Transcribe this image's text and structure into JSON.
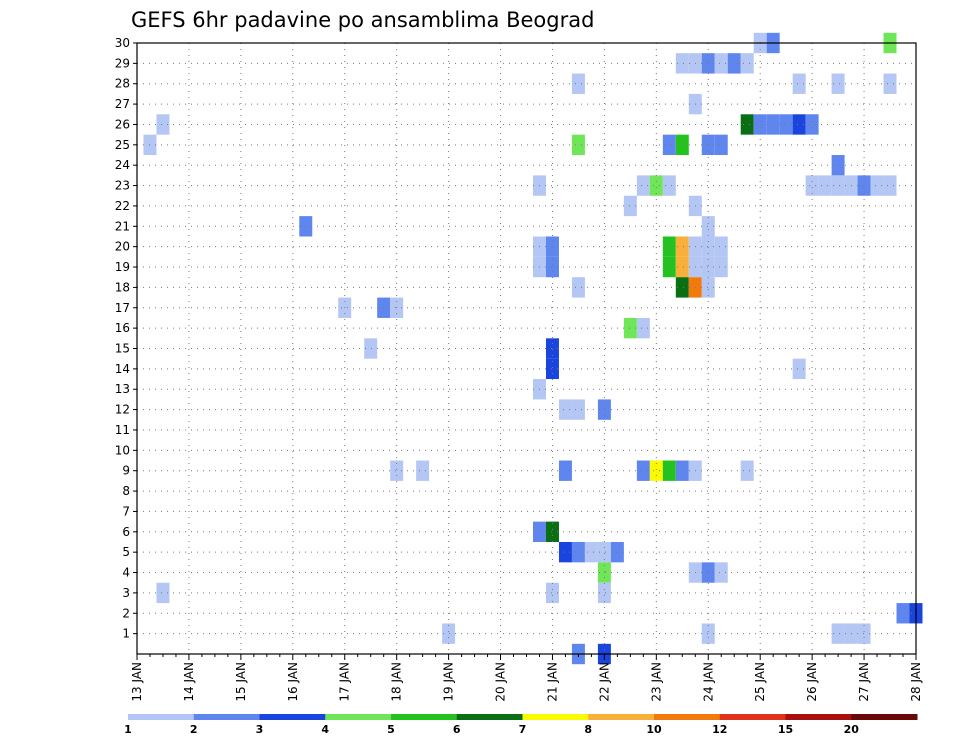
{
  "chart_data": {
    "type": "heatmap",
    "title": "GEFS 6hr padavine po ansamblima Beograd",
    "x_tick_labels": [
      "13 JAN",
      "14 JAN",
      "15 JAN",
      "16 JAN",
      "17 JAN",
      "18 JAN",
      "19 JAN",
      "20 JAN",
      "21 JAN",
      "22 JAN",
      "23 JAN",
      "24 JAN",
      "25 JAN",
      "26 JAN",
      "27 JAN",
      "28 JAN"
    ],
    "y_tick_labels": [
      "1",
      "2",
      "3",
      "4",
      "5",
      "6",
      "7",
      "8",
      "9",
      "10",
      "11",
      "12",
      "13",
      "14",
      "15",
      "16",
      "17",
      "18",
      "19",
      "20",
      "21",
      "22",
      "23",
      "24",
      "25",
      "26",
      "27",
      "28",
      "29",
      "30"
    ],
    "x_unit": "6-hour step from 13 JAN 00",
    "xlim": [
      0,
      60
    ],
    "ylim": [
      0,
      30
    ],
    "grid": true,
    "colorbar": {
      "labels": [
        "1",
        "2",
        "3",
        "4",
        "5",
        "6",
        "7",
        "8",
        "10",
        "12",
        "15",
        "20"
      ],
      "colors": [
        "#b4c6f4",
        "#5f86ee",
        "#1a44de",
        "#6ee657",
        "#24c21e",
        "#0a6e14",
        "#fafa00",
        "#f8b03a",
        "#f27a0c",
        "#e0321c",
        "#a81010",
        "#6a0808"
      ]
    },
    "cells": [
      {
        "m": 30,
        "t": 48,
        "c": 0
      },
      {
        "m": 30,
        "t": 49,
        "c": 1
      },
      {
        "m": 30,
        "t": 58,
        "c": 3
      },
      {
        "m": 29,
        "t": 42,
        "c": 0
      },
      {
        "m": 29,
        "t": 43,
        "c": 0
      },
      {
        "m": 29,
        "t": 44,
        "c": 1
      },
      {
        "m": 29,
        "t": 45,
        "c": 0
      },
      {
        "m": 29,
        "t": 46,
        "c": 1
      },
      {
        "m": 29,
        "t": 47,
        "c": 0
      },
      {
        "m": 28,
        "t": 34,
        "c": 0
      },
      {
        "m": 28,
        "t": 51,
        "c": 0
      },
      {
        "m": 28,
        "t": 54,
        "c": 0
      },
      {
        "m": 28,
        "t": 58,
        "c": 0
      },
      {
        "m": 27,
        "t": 43,
        "c": 0
      },
      {
        "m": 26,
        "t": 2,
        "c": 0
      },
      {
        "m": 26,
        "t": 47,
        "c": 5
      },
      {
        "m": 26,
        "t": 48,
        "c": 1
      },
      {
        "m": 26,
        "t": 49,
        "c": 1
      },
      {
        "m": 26,
        "t": 50,
        "c": 1
      },
      {
        "m": 26,
        "t": 51,
        "c": 2
      },
      {
        "m": 26,
        "t": 52,
        "c": 1
      },
      {
        "m": 25,
        "t": 1,
        "c": 0
      },
      {
        "m": 25,
        "t": 34,
        "c": 3
      },
      {
        "m": 25,
        "t": 41,
        "c": 1
      },
      {
        "m": 25,
        "t": 42,
        "c": 4
      },
      {
        "m": 25,
        "t": 44,
        "c": 1
      },
      {
        "m": 25,
        "t": 45,
        "c": 1
      },
      {
        "m": 24,
        "t": 54,
        "c": 1
      },
      {
        "m": 23,
        "t": 31,
        "c": 0
      },
      {
        "m": 23,
        "t": 39,
        "c": 0
      },
      {
        "m": 23,
        "t": 40,
        "c": 3
      },
      {
        "m": 23,
        "t": 41,
        "c": 0
      },
      {
        "m": 23,
        "t": 52,
        "c": 0
      },
      {
        "m": 23,
        "t": 53,
        "c": 0
      },
      {
        "m": 23,
        "t": 54,
        "c": 0
      },
      {
        "m": 23,
        "t": 55,
        "c": 0
      },
      {
        "m": 23,
        "t": 56,
        "c": 1
      },
      {
        "m": 23,
        "t": 57,
        "c": 0
      },
      {
        "m": 23,
        "t": 58,
        "c": 0
      },
      {
        "m": 22,
        "t": 38,
        "c": 0
      },
      {
        "m": 22,
        "t": 43,
        "c": 0
      },
      {
        "m": 21,
        "t": 13,
        "c": 1
      },
      {
        "m": 21,
        "t": 44,
        "c": 0
      },
      {
        "m": 20,
        "t": 31,
        "c": 0
      },
      {
        "m": 20,
        "t": 32,
        "c": 1
      },
      {
        "m": 20,
        "t": 41,
        "c": 4
      },
      {
        "m": 20,
        "t": 42,
        "c": 7
      },
      {
        "m": 20,
        "t": 43,
        "c": 0
      },
      {
        "m": 20,
        "t": 44,
        "c": 0
      },
      {
        "m": 20,
        "t": 45,
        "c": 0
      },
      {
        "m": 19,
        "t": 31,
        "c": 0
      },
      {
        "m": 19,
        "t": 32,
        "c": 1
      },
      {
        "m": 19,
        "t": 41,
        "c": 4
      },
      {
        "m": 19,
        "t": 42,
        "c": 7
      },
      {
        "m": 19,
        "t": 43,
        "c": 0
      },
      {
        "m": 19,
        "t": 44,
        "c": 0
      },
      {
        "m": 19,
        "t": 45,
        "c": 0
      },
      {
        "m": 18,
        "t": 34,
        "c": 0
      },
      {
        "m": 18,
        "t": 42,
        "c": 5
      },
      {
        "m": 18,
        "t": 43,
        "c": 8
      },
      {
        "m": 18,
        "t": 44,
        "c": 0
      },
      {
        "m": 17,
        "t": 16,
        "c": 0
      },
      {
        "m": 17,
        "t": 19,
        "c": 1
      },
      {
        "m": 17,
        "t": 20,
        "c": 0
      },
      {
        "m": 16,
        "t": 38,
        "c": 3
      },
      {
        "m": 16,
        "t": 39,
        "c": 0
      },
      {
        "m": 15,
        "t": 18,
        "c": 0
      },
      {
        "m": 15,
        "t": 32,
        "c": 2
      },
      {
        "m": 14,
        "t": 32,
        "c": 2
      },
      {
        "m": 14,
        "t": 51,
        "c": 0
      },
      {
        "m": 13,
        "t": 31,
        "c": 0
      },
      {
        "m": 12,
        "t": 33,
        "c": 0
      },
      {
        "m": 12,
        "t": 34,
        "c": 0
      },
      {
        "m": 12,
        "t": 36,
        "c": 1
      },
      {
        "m": 9,
        "t": 20,
        "c": 0
      },
      {
        "m": 9,
        "t": 22,
        "c": 0
      },
      {
        "m": 9,
        "t": 33,
        "c": 1
      },
      {
        "m": 9,
        "t": 39,
        "c": 1
      },
      {
        "m": 9,
        "t": 40,
        "c": 6
      },
      {
        "m": 9,
        "t": 41,
        "c": 4
      },
      {
        "m": 9,
        "t": 42,
        "c": 1
      },
      {
        "m": 9,
        "t": 43,
        "c": 0
      },
      {
        "m": 9,
        "t": 47,
        "c": 0
      },
      {
        "m": 6,
        "t": 31,
        "c": 1
      },
      {
        "m": 6,
        "t": 32,
        "c": 5
      },
      {
        "m": 5,
        "t": 33,
        "c": 2
      },
      {
        "m": 5,
        "t": 34,
        "c": 1
      },
      {
        "m": 5,
        "t": 35,
        "c": 0
      },
      {
        "m": 5,
        "t": 36,
        "c": 0
      },
      {
        "m": 5,
        "t": 37,
        "c": 1
      },
      {
        "m": 4,
        "t": 36,
        "c": 3
      },
      {
        "m": 4,
        "t": 43,
        "c": 0
      },
      {
        "m": 4,
        "t": 44,
        "c": 1
      },
      {
        "m": 4,
        "t": 45,
        "c": 0
      },
      {
        "m": 3,
        "t": 2,
        "c": 0
      },
      {
        "m": 3,
        "t": 32,
        "c": 0
      },
      {
        "m": 3,
        "t": 36,
        "c": 0
      },
      {
        "m": 2,
        "t": 59,
        "c": 1
      },
      {
        "m": 2,
        "t": 60,
        "c": 2
      },
      {
        "m": 1,
        "t": 24,
        "c": 0
      },
      {
        "m": 1,
        "t": 44,
        "c": 0
      },
      {
        "m": 1,
        "t": 54,
        "c": 0
      },
      {
        "m": 1,
        "t": 55,
        "c": 0
      },
      {
        "m": 1,
        "t": 56,
        "c": 0
      },
      {
        "m": 0,
        "t": 34,
        "c": 1
      },
      {
        "m": 0,
        "t": 36,
        "c": 2
      }
    ]
  }
}
